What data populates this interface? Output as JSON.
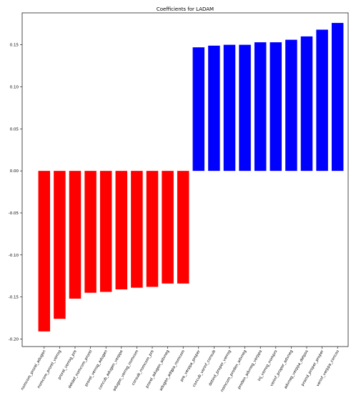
{
  "chart_data": {
    "type": "bar",
    "title": "Coefficients for LADAM",
    "xlabel": "",
    "ylabel": "",
    "ylim": [
      -0.209,
      0.188
    ],
    "yticks": [
      "-0.20",
      "-0.15",
      "-0.10",
      "-0.05",
      "0.00",
      "0.05",
      "0.10",
      "0.15"
    ],
    "ytick_values": [
      -0.2,
      -0.15,
      -0.1,
      -0.05,
      0.0,
      0.05,
      0.1,
      0.15
    ],
    "grid": false,
    "negative_color": "#ff0000",
    "positive_color": "#0000ff",
    "categories": [
      "nomcom_prorel_adugen",
      "nomcom_prorel_verrog",
      "prorel_verrog_pre",
      "detdef_nomcom_prorel",
      "prorel_verrog_adugen",
      "concub_adugen_verppe",
      "adugen_verrog_nomcom",
      "consub_nomcom_pre",
      "prorel_adugen_advneg",
      "adugen_adqpa_nomcom",
      "pre_verppa_proper",
      "concub_verinf_consub",
      "detind_proper_verrog",
      "nomcom_proden_advneg",
      "proden_advneg_verppa",
      "inj_verrog_nompro",
      "verinf_proper_advneg",
      "advneg_verppa_detpos",
      "proind_proper_proper",
      "verinf_verppa_concoo"
    ],
    "values": [
      -0.191,
      -0.176,
      -0.152,
      -0.145,
      -0.144,
      -0.141,
      -0.139,
      -0.138,
      -0.134,
      -0.134,
      0.147,
      0.149,
      0.15,
      0.15,
      0.153,
      0.153,
      0.156,
      0.16,
      0.168,
      0.176
    ]
  }
}
